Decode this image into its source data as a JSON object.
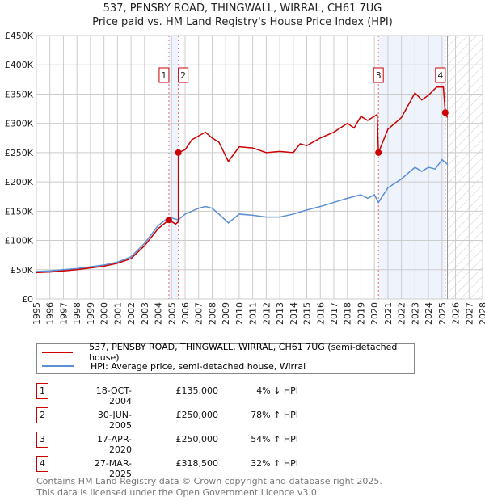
{
  "chart_data": {
    "type": "line",
    "title": "537, PENSBY ROAD, THINGWALL, WIRRAL, CH61 7UG",
    "subtitle": "Price paid vs. HM Land Registry's House Price Index (HPI)",
    "xlim": [
      1995,
      2028
    ],
    "ylim": [
      0,
      450000
    ],
    "x_ticks": [
      "1995",
      "1996",
      "1997",
      "1998",
      "1999",
      "2000",
      "2001",
      "2002",
      "2003",
      "2004",
      "2005",
      "2006",
      "2007",
      "2008",
      "2009",
      "2010",
      "2011",
      "2012",
      "2013",
      "2014",
      "2015",
      "2016",
      "2017",
      "2018",
      "2019",
      "2020",
      "2021",
      "2022",
      "2023",
      "2024",
      "2025",
      "2026",
      "2027",
      "2028"
    ],
    "y_ticks": [
      {
        "v": 0,
        "label": "£0"
      },
      {
        "v": 50000,
        "label": "£50K"
      },
      {
        "v": 100000,
        "label": "£100K"
      },
      {
        "v": 150000,
        "label": "£150K"
      },
      {
        "v": 200000,
        "label": "£200K"
      },
      {
        "v": 250000,
        "label": "£250K"
      },
      {
        "v": 300000,
        "label": "£300K"
      },
      {
        "v": 350000,
        "label": "£350K"
      },
      {
        "v": 400000,
        "label": "£400K"
      },
      {
        "v": 450000,
        "label": "£450K"
      }
    ],
    "grid": true,
    "series": [
      {
        "name": "537, PENSBY ROAD, THINGWALL, WIRRAL, CH61 7UG (semi-detached house)",
        "color": "#cc0000",
        "x": [
          1995,
          1996,
          1997,
          1998,
          1999,
          2000,
          2001,
          2002,
          2003,
          2004,
          2004.8,
          2005.3,
          2005.5,
          2005.5,
          2006,
          2006.5,
          2007.5,
          2008,
          2008.5,
          2009.2,
          2010,
          2011,
          2012,
          2013,
          2014,
          2014.5,
          2015,
          2016,
          2017,
          2018,
          2018.5,
          2019,
          2019.5,
          2020.2,
          2020.3,
          2021,
          2022,
          2023,
          2023.5,
          2024,
          2024.6,
          2025.1,
          2025.24,
          2025.4
        ],
        "y": [
          45000,
          46000,
          48000,
          50000,
          53000,
          56000,
          61000,
          69000,
          91000,
          120000,
          135000,
          128000,
          132000,
          250000,
          255000,
          272000,
          285000,
          275000,
          268000,
          235000,
          260000,
          258000,
          250000,
          252000,
          250000,
          265000,
          262000,
          275000,
          285000,
          300000,
          292000,
          312000,
          305000,
          315000,
          250000,
          290000,
          310000,
          352000,
          340000,
          348000,
          362000,
          362000,
          318500,
          310000
        ]
      },
      {
        "name": "HPI: Average price, semi-detached house, Wirral",
        "color": "#5b8fd4",
        "x": [
          1995,
          1996,
          1997,
          1998,
          1999,
          2000,
          2001,
          2002,
          2003,
          2004,
          2004.8,
          2005.5,
          2006,
          2007,
          2007.5,
          2008,
          2008.5,
          2009.2,
          2010,
          2011,
          2012,
          2013,
          2014,
          2015,
          2016,
          2017,
          2018,
          2019,
          2019.5,
          2020,
          2020.3,
          2021,
          2022,
          2023,
          2023.5,
          2024,
          2024.5,
          2025,
          2025.4
        ],
        "y": [
          47000,
          48000,
          50000,
          52000,
          55000,
          58000,
          63000,
          72000,
          95000,
          125000,
          140000,
          135000,
          145000,
          155000,
          158000,
          155000,
          145000,
          130000,
          145000,
          143000,
          140000,
          140000,
          145000,
          152000,
          158000,
          165000,
          172000,
          178000,
          172000,
          178000,
          165000,
          190000,
          205000,
          225000,
          218000,
          225000,
          222000,
          238000,
          230000
        ]
      }
    ],
    "sales": [
      {
        "label": "1",
        "x": 2004.8,
        "y": 135000,
        "date": "18-OCT-2004",
        "price": "£135,000",
        "hpi": "4% ↓ HPI"
      },
      {
        "label": "2",
        "x": 2005.5,
        "y": 250000,
        "date": "30-JUN-2005",
        "price": "£250,000",
        "hpi": "78% ↑ HPI"
      },
      {
        "label": "3",
        "x": 2020.3,
        "y": 250000,
        "date": "17-APR-2020",
        "price": "£250,000",
        "hpi": "54% ↑ HPI"
      },
      {
        "label": "4",
        "x": 2025.24,
        "y": 318500,
        "date": "27-MAR-2025",
        "price": "£318,500",
        "hpi": "32% ↑ HPI"
      }
    ],
    "shaded_ranges": [
      [
        2004.8,
        2005.5
      ],
      [
        2020.3,
        2025.24
      ]
    ],
    "forecast_from": 2025.4
  },
  "footer": {
    "line1": "Contains HM Land Registry data © Crown copyright and database right 2025.",
    "line2": "This data is licensed under the Open Government Licence v3.0."
  }
}
